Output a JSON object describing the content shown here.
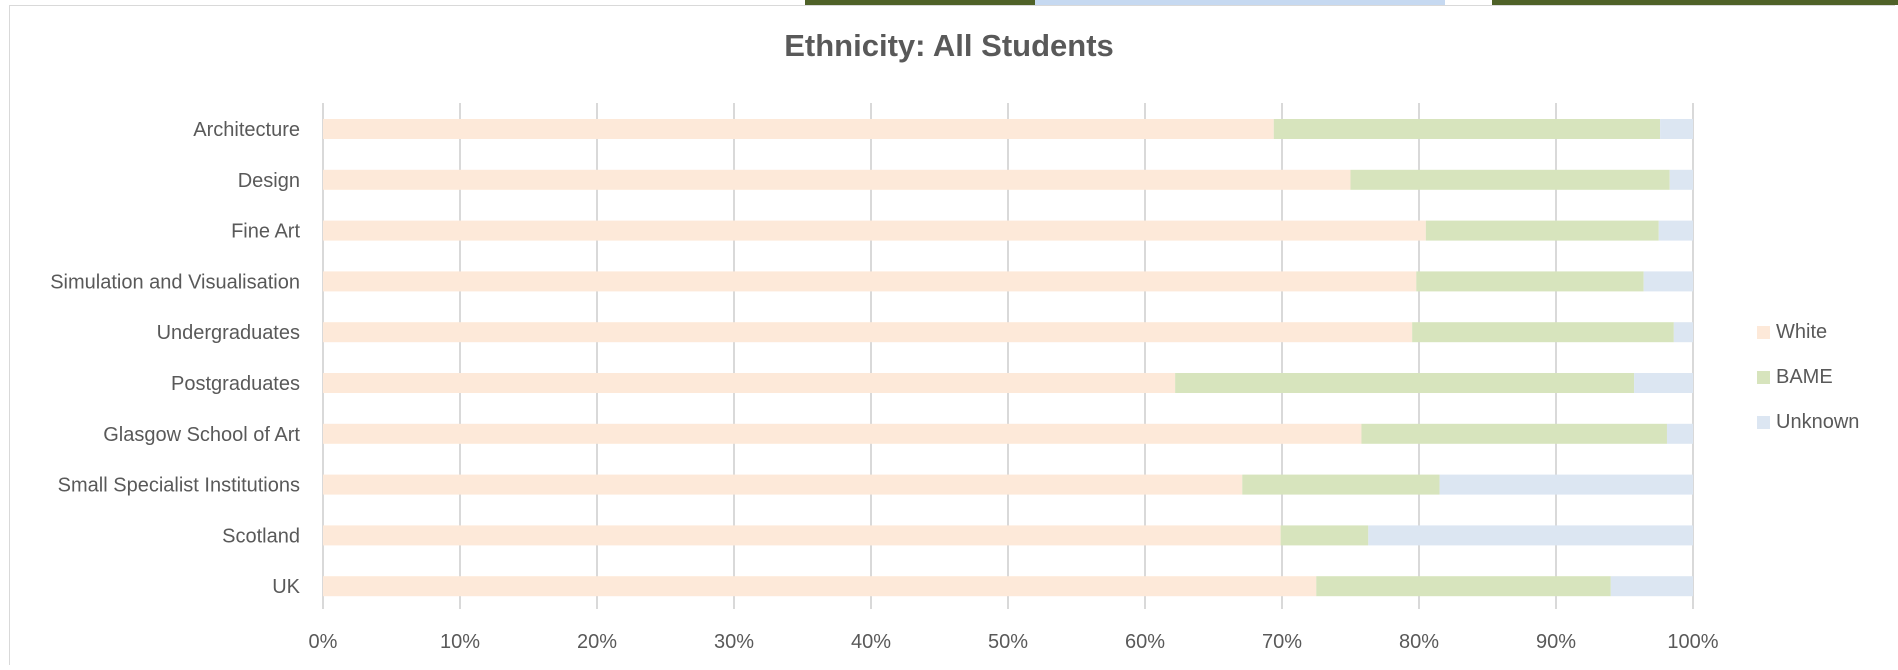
{
  "chart_data": {
    "type": "bar",
    "orientation": "horizontal",
    "stacked": true,
    "normalized": true,
    "title": "Ethnicity: All Students",
    "xlabel": "",
    "ylabel": "",
    "xlim": [
      0,
      100
    ],
    "x_ticks": [
      "0%",
      "10%",
      "20%",
      "30%",
      "40%",
      "50%",
      "60%",
      "70%",
      "80%",
      "90%",
      "100%"
    ],
    "grid": true,
    "legend_position": "right",
    "categories": [
      "Architecture",
      "Design",
      "Fine Art",
      "Simulation and Visualisation",
      "Undergraduates",
      "Postgraduates",
      "Glasgow School of Art",
      "Small Specialist Institutions",
      "Scotland",
      "UK"
    ],
    "series": [
      {
        "name": "White",
        "color": "#fde9d9",
        "values": [
          69.4,
          75.0,
          80.5,
          79.8,
          79.5,
          62.2,
          75.8,
          67.1,
          69.9,
          72.5
        ]
      },
      {
        "name": "BAME",
        "color": "#d7e4bd",
        "values": [
          28.2,
          23.3,
          17.0,
          16.6,
          19.1,
          33.5,
          22.3,
          14.4,
          6.4,
          21.5
        ]
      },
      {
        "name": "Unknown",
        "color": "#dce6f2",
        "values": [
          2.4,
          1.7,
          2.5,
          3.6,
          1.4,
          4.3,
          1.9,
          18.5,
          23.7,
          6.0
        ]
      }
    ]
  }
}
